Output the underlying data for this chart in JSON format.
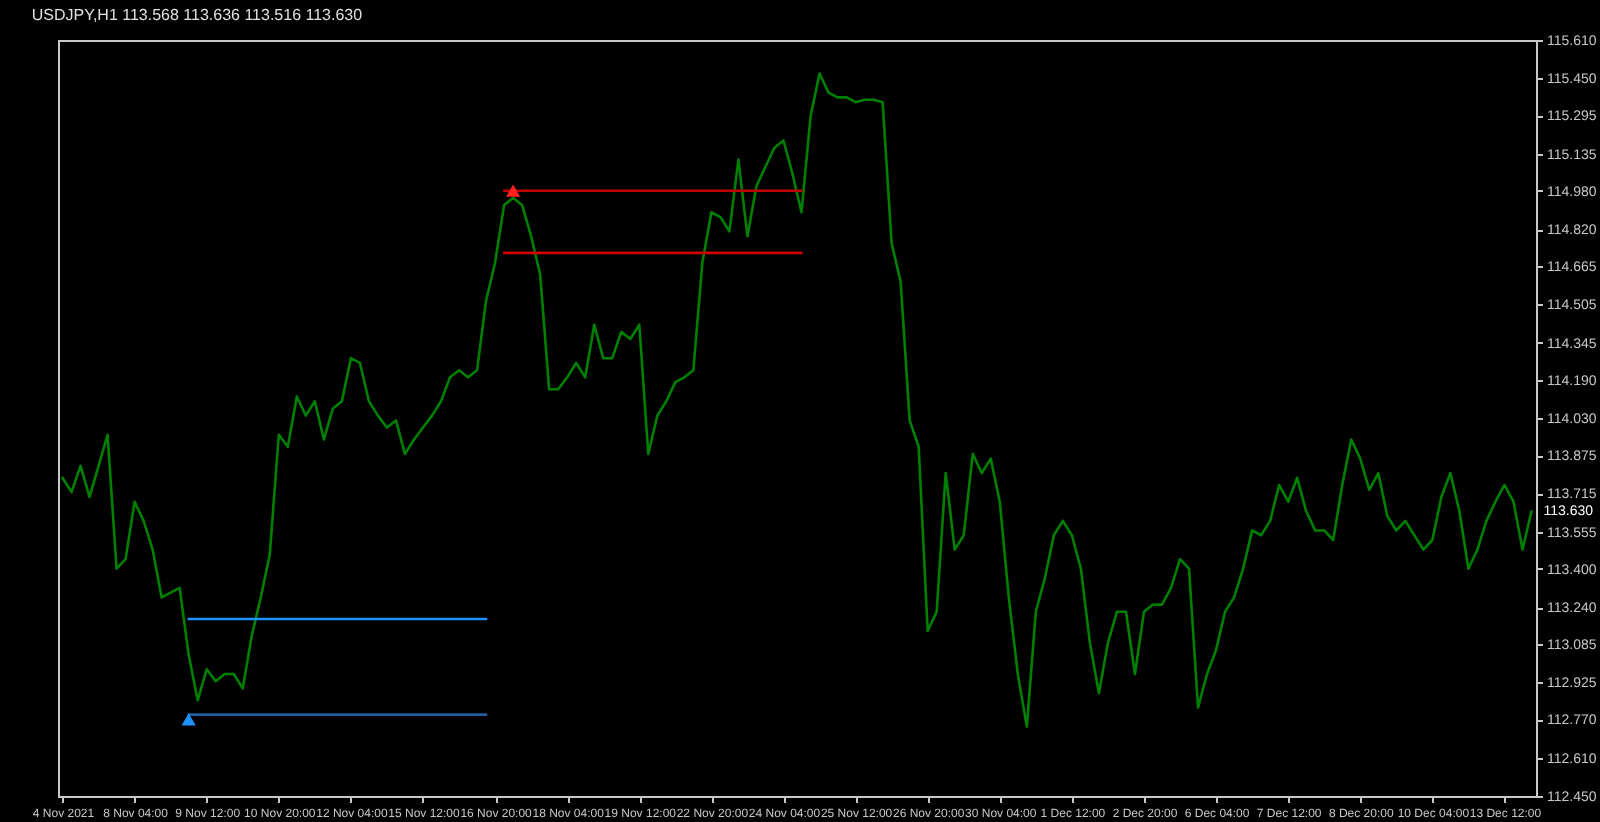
{
  "chart_data": {
    "type": "line",
    "title": "USDJPY,H1  113.568 113.636 113.516 113.630",
    "annotations": [
      "113.630"
    ],
    "categories": [
      "4 Nov 2021",
      null,
      null,
      null,
      null,
      null,
      null,
      null,
      "8 Nov 04:00",
      null,
      null,
      null,
      null,
      null,
      null,
      null,
      "9 Nov 12:00",
      null,
      null,
      null,
      null,
      null,
      null,
      null,
      "10 Nov 20:00",
      null,
      null,
      null,
      null,
      null,
      null,
      null,
      "12 Nov 04:00",
      null,
      null,
      null,
      null,
      null,
      null,
      null,
      "15 Nov 12:00",
      null,
      null,
      null,
      null,
      null,
      null,
      null,
      "16 Nov 20:00",
      null,
      null,
      null,
      null,
      null,
      null,
      null,
      "18 Nov 04:00",
      null,
      null,
      null,
      null,
      null,
      null,
      null,
      "19 Nov 12:00",
      null,
      null,
      null,
      null,
      null,
      null,
      null,
      "22 Nov 20:00",
      null,
      null,
      null,
      null,
      null,
      null,
      null,
      "24 Nov 04:00",
      null,
      null,
      null,
      null,
      null,
      null,
      null,
      "25 Nov 12:00",
      null,
      null,
      null,
      null,
      null,
      null,
      null,
      "26 Nov 20:00",
      null,
      null,
      null,
      null,
      null,
      null,
      null,
      "30 Nov 04:00",
      null,
      null,
      null,
      null,
      null,
      null,
      null,
      "1 Dec 12:00",
      null,
      null,
      null,
      null,
      null,
      null,
      null,
      "2 Dec 20:00",
      null,
      null,
      null,
      null,
      null,
      null,
      null,
      "6 Dec 04:00",
      null,
      null,
      null,
      null,
      null,
      null,
      null,
      "7 Dec 12:00",
      null,
      null,
      null,
      null,
      null,
      null,
      null,
      "8 Dec 20:00",
      null,
      null,
      null,
      null,
      null,
      null,
      null,
      "10 Dec 04:00",
      null,
      null,
      null,
      null,
      null,
      null,
      null,
      "13 Dec 12:00",
      null,
      null,
      null
    ],
    "ylim": [
      112.45,
      115.61
    ],
    "yticks": [
      {
        "value": 112.45,
        "label": "112.450"
      },
      {
        "value": 112.61,
        "label": "112.610"
      },
      {
        "value": 112.77,
        "label": "112.770"
      },
      {
        "value": 112.925,
        "label": "112.925"
      },
      {
        "value": 113.085,
        "label": "113.085"
      },
      {
        "value": 113.24,
        "label": "113.240"
      },
      {
        "value": 113.4,
        "label": "113.400"
      },
      {
        "value": 113.555,
        "label": "113.555"
      },
      {
        "value": 113.715,
        "label": "113.715"
      },
      {
        "value": 113.875,
        "label": "113.875"
      },
      {
        "value": 114.03,
        "label": "114.030"
      },
      {
        "value": 114.19,
        "label": "114.190"
      },
      {
        "value": 114.345,
        "label": "114.345"
      },
      {
        "value": 114.505,
        "label": "114.505"
      },
      {
        "value": 114.665,
        "label": "114.665"
      },
      {
        "value": 114.82,
        "label": "114.820"
      },
      {
        "value": 114.98,
        "label": "114.980"
      },
      {
        "value": 115.135,
        "label": "115.135"
      },
      {
        "value": 115.295,
        "label": "115.295"
      },
      {
        "value": 115.45,
        "label": "115.450"
      },
      {
        "value": 115.61,
        "label": "115.610"
      }
    ],
    "series": [
      {
        "color": "#008000",
        "values": [
          113.78,
          113.72,
          113.83,
          113.7,
          113.83,
          113.96,
          113.4,
          113.44,
          113.68,
          113.6,
          113.48,
          113.28,
          113.3,
          113.32,
          113.04,
          112.85,
          112.98,
          112.93,
          112.96,
          112.96,
          112.9,
          113.12,
          113.28,
          113.46,
          113.96,
          113.91,
          114.12,
          114.04,
          114.1,
          113.94,
          114.07,
          114.1,
          114.28,
          114.26,
          114.1,
          114.04,
          113.99,
          114.02,
          113.88,
          113.94,
          113.99,
          114.04,
          114.1,
          114.2,
          114.23,
          114.2,
          114.23,
          114.52,
          114.68,
          114.92,
          114.95,
          114.92,
          114.79,
          114.63,
          114.15,
          114.15,
          114.2,
          114.26,
          114.2,
          114.42,
          114.28,
          114.28,
          114.39,
          114.36,
          114.42,
          113.88,
          114.04,
          114.1,
          114.18,
          114.2,
          114.23,
          114.68,
          114.89,
          114.87,
          114.81,
          115.11,
          114.79,
          115.0,
          115.08,
          115.16,
          115.19,
          115.05,
          114.89,
          115.29,
          115.47,
          115.39,
          115.37,
          115.37,
          115.35,
          115.36,
          115.36,
          115.35,
          114.76,
          114.6,
          114.02,
          113.91,
          113.14,
          113.22,
          113.8,
          113.48,
          113.54,
          113.88,
          113.8,
          113.86,
          113.68,
          113.28,
          112.96,
          112.74,
          113.22,
          113.36,
          113.54,
          113.6,
          113.54,
          113.4,
          113.09,
          112.88,
          113.09,
          113.22,
          113.22,
          112.96,
          113.22,
          113.25,
          113.25,
          113.32,
          113.44,
          113.4,
          112.82,
          112.96,
          113.06,
          113.22,
          113.28,
          113.4,
          113.56,
          113.54,
          113.6,
          113.75,
          113.68,
          113.78,
          113.64,
          113.56,
          113.56,
          113.52,
          113.75,
          113.94,
          113.86,
          113.73,
          113.8,
          113.62,
          113.56,
          113.6,
          113.54,
          113.48,
          113.52,
          113.7,
          113.8,
          113.64,
          113.4,
          113.48,
          113.6,
          113.68,
          113.75,
          113.68,
          113.48,
          113.64
        ]
      },
      {
        "type": "line",
        "color": "#1e90ff",
        "values": [
          null,
          null,
          null,
          null,
          null,
          null,
          null,
          null,
          null,
          null,
          null,
          null,
          null,
          null,
          113.19,
          113.19,
          113.19,
          113.19,
          113.19,
          113.19,
          113.19,
          113.19,
          113.19,
          113.19,
          113.19,
          113.19,
          113.19,
          113.19,
          113.19,
          113.19,
          113.19,
          113.19,
          113.19,
          113.19,
          113.19,
          113.19,
          113.19,
          113.19,
          113.19,
          113.19,
          113.19,
          113.19,
          113.19,
          113.19,
          113.19,
          113.19,
          113.19,
          113.19,
          null,
          null,
          null,
          null,
          null,
          null,
          null,
          null,
          null,
          null,
          null,
          null,
          null,
          null,
          null,
          null,
          null,
          null,
          null,
          null,
          null,
          null,
          null,
          null,
          null,
          null,
          null,
          null,
          null,
          null,
          null,
          null,
          null,
          null,
          null,
          null,
          null,
          null,
          null,
          null,
          null,
          null,
          null,
          null,
          null,
          null,
          null,
          null,
          null,
          null,
          null,
          null,
          null,
          null,
          null,
          null,
          null,
          null,
          null,
          null,
          null,
          null,
          null,
          null,
          null,
          null,
          null,
          null,
          null,
          null,
          null,
          null,
          null,
          null,
          null,
          null,
          null,
          null,
          null,
          null,
          null,
          null,
          null,
          null,
          null,
          null,
          null,
          null,
          null,
          null,
          null,
          null,
          null,
          null,
          null,
          null,
          null,
          null,
          null,
          null,
          null,
          null,
          null,
          null,
          null,
          null,
          null,
          null,
          null,
          null,
          null,
          null,
          null,
          null,
          null,
          null
        ]
      },
      {
        "type": "line",
        "color": "#1f5f9f",
        "values": [
          null,
          null,
          null,
          null,
          null,
          null,
          null,
          null,
          null,
          null,
          null,
          null,
          null,
          null,
          112.79,
          112.79,
          112.79,
          112.79,
          112.79,
          112.79,
          112.79,
          112.79,
          112.79,
          112.79,
          112.79,
          112.79,
          112.79,
          112.79,
          112.79,
          112.79,
          112.79,
          112.79,
          112.79,
          112.79,
          112.79,
          112.79,
          112.79,
          112.79,
          112.79,
          112.79,
          112.79,
          112.79,
          112.79,
          112.79,
          112.79,
          112.79,
          112.79,
          112.79,
          null,
          null,
          null,
          null,
          null,
          null,
          null,
          null,
          null,
          null,
          null,
          null,
          null,
          null,
          null,
          null,
          null,
          null,
          null,
          null,
          null,
          null,
          null,
          null,
          null,
          null,
          null,
          null,
          null,
          null,
          null,
          null,
          null,
          null,
          null,
          null,
          null,
          null,
          null,
          null,
          null,
          null,
          null,
          null,
          null,
          null,
          null,
          null,
          null,
          null,
          null,
          null,
          null,
          null,
          null,
          null,
          null,
          null,
          null,
          null,
          null,
          null,
          null,
          null,
          null,
          null,
          null,
          null,
          null,
          null,
          null,
          null,
          null,
          null,
          null,
          null,
          null,
          null,
          null,
          null,
          null,
          null,
          null,
          null,
          null,
          null,
          null,
          null,
          null,
          null,
          null,
          null,
          null,
          null,
          null,
          null,
          null,
          null,
          null,
          null,
          null,
          null,
          null,
          null,
          null,
          null,
          null,
          null,
          null,
          null,
          null,
          null,
          null,
          null,
          null,
          null
        ]
      },
      {
        "type": "line",
        "color": "#c00000",
        "values": [
          null,
          null,
          null,
          null,
          null,
          null,
          null,
          null,
          null,
          null,
          null,
          null,
          null,
          null,
          null,
          null,
          null,
          null,
          null,
          null,
          null,
          null,
          null,
          null,
          null,
          null,
          null,
          null,
          null,
          null,
          null,
          null,
          null,
          null,
          null,
          null,
          null,
          null,
          null,
          null,
          null,
          null,
          null,
          null,
          null,
          null,
          null,
          null,
          null,
          114.98,
          114.98,
          114.98,
          114.98,
          114.98,
          114.98,
          114.98,
          114.98,
          114.98,
          114.98,
          114.98,
          114.98,
          114.98,
          114.98,
          114.98,
          114.98,
          114.98,
          114.98,
          114.98,
          114.98,
          114.98,
          114.98,
          114.98,
          114.98,
          114.98,
          114.98,
          114.98,
          114.98,
          114.98,
          114.98,
          114.98,
          114.98,
          114.98,
          114.98,
          null,
          null,
          null,
          null,
          null,
          null,
          null,
          null,
          null,
          null,
          null,
          null,
          null,
          null,
          null,
          null,
          null,
          null,
          null,
          null,
          null,
          null,
          null,
          null,
          null,
          null,
          null,
          null,
          null,
          null,
          null,
          null,
          null,
          null,
          null,
          null,
          null,
          null,
          null,
          null,
          null,
          null,
          null,
          null,
          null,
          null,
          null,
          null,
          null,
          null,
          null,
          null,
          null,
          null,
          null,
          null,
          null,
          null,
          null,
          null,
          null,
          null,
          null,
          null,
          null,
          null,
          null,
          null,
          null,
          null,
          null,
          null,
          null,
          null,
          null,
          null,
          null,
          null,
          null,
          null,
          null
        ]
      },
      {
        "type": "line",
        "color": "#d00000",
        "values": [
          null,
          null,
          null,
          null,
          null,
          null,
          null,
          null,
          null,
          null,
          null,
          null,
          null,
          null,
          null,
          null,
          null,
          null,
          null,
          null,
          null,
          null,
          null,
          null,
          null,
          null,
          null,
          null,
          null,
          null,
          null,
          null,
          null,
          null,
          null,
          null,
          null,
          null,
          null,
          null,
          null,
          null,
          null,
          null,
          null,
          null,
          null,
          null,
          null,
          114.72,
          114.72,
          114.72,
          114.72,
          114.72,
          114.72,
          114.72,
          114.72,
          114.72,
          114.72,
          114.72,
          114.72,
          114.72,
          114.72,
          114.72,
          114.72,
          114.72,
          114.72,
          114.72,
          114.72,
          114.72,
          114.72,
          114.72,
          114.72,
          114.72,
          114.72,
          114.72,
          114.72,
          114.72,
          114.72,
          114.72,
          114.72,
          114.72,
          114.72,
          null,
          null,
          null,
          null,
          null,
          null,
          null,
          null,
          null,
          null,
          null,
          null,
          null,
          null,
          null,
          null,
          null,
          null,
          null,
          null,
          null,
          null,
          null,
          null,
          null,
          null,
          null,
          null,
          null,
          null,
          null,
          null,
          null,
          null,
          null,
          null,
          null,
          null,
          null,
          null,
          null,
          null,
          null,
          null,
          null,
          null,
          null,
          null,
          null,
          null,
          null,
          null,
          null,
          null,
          null,
          null,
          null,
          null,
          null,
          null,
          null,
          null,
          null,
          null,
          null,
          null,
          null,
          null,
          null,
          null,
          null,
          null,
          null,
          null,
          null,
          null,
          null,
          null,
          null,
          null,
          null
        ]
      },
      {
        "type": "scatter",
        "color": "#ff2020",
        "marker": "triangle",
        "values": [
          null,
          null,
          null,
          null,
          null,
          null,
          null,
          null,
          null,
          null,
          null,
          null,
          null,
          null,
          null,
          null,
          null,
          null,
          null,
          null,
          null,
          null,
          null,
          null,
          null,
          null,
          null,
          null,
          null,
          null,
          null,
          null,
          null,
          null,
          null,
          null,
          null,
          null,
          null,
          null,
          null,
          null,
          null,
          null,
          null,
          null,
          null,
          null,
          null,
          null,
          114.98,
          null,
          null,
          null,
          null,
          null,
          null,
          null,
          null,
          null,
          null,
          null,
          null,
          null,
          null,
          null,
          null,
          null,
          null,
          null,
          null,
          null,
          null,
          null,
          null,
          null,
          null,
          null,
          null,
          null,
          null,
          null,
          null,
          null,
          null,
          null,
          null,
          null,
          null,
          null,
          null,
          null,
          null,
          null,
          null,
          null,
          null,
          null,
          null,
          null,
          null,
          null,
          null,
          null,
          null,
          null,
          null,
          null,
          null,
          null,
          null,
          null,
          null,
          null,
          null,
          null,
          null,
          null,
          null,
          null,
          null,
          null,
          null,
          null,
          null,
          null,
          null,
          null,
          null,
          null,
          null,
          null,
          null,
          null,
          null,
          null,
          null,
          null,
          null,
          null,
          null,
          null,
          null,
          null,
          null,
          null,
          null,
          null,
          null,
          null,
          null,
          null,
          null,
          null,
          null,
          null,
          null,
          null,
          null,
          null,
          null,
          null,
          null,
          null
        ]
      },
      {
        "type": "scatter",
        "color": "#1e90ff",
        "marker": "triangle",
        "values": [
          null,
          null,
          null,
          null,
          null,
          null,
          null,
          null,
          null,
          null,
          null,
          null,
          null,
          null,
          112.77,
          null,
          null,
          null,
          null,
          null,
          null,
          null,
          null,
          null,
          null,
          null,
          null,
          null,
          null,
          null,
          null,
          null,
          null,
          null,
          null,
          null,
          null,
          null,
          null,
          null,
          null,
          null,
          null,
          null,
          null,
          null,
          null,
          null,
          null,
          null,
          null,
          null,
          null,
          null,
          null,
          null,
          null,
          null,
          null,
          null,
          null,
          null,
          null,
          null,
          null,
          null,
          null,
          null,
          null,
          null,
          null,
          null,
          null,
          null,
          null,
          null,
          null,
          null,
          null,
          null,
          null,
          null,
          null,
          null,
          null,
          null,
          null,
          null,
          null,
          null,
          null,
          null,
          null,
          null,
          null,
          null,
          null,
          null,
          null,
          null,
          null,
          null,
          null,
          null,
          null,
          null,
          null,
          null,
          null,
          null,
          null,
          null,
          null,
          null,
          null,
          null,
          null,
          null,
          null,
          null,
          null,
          null,
          null,
          null,
          null,
          null,
          null,
          null,
          null,
          null,
          null,
          null,
          null,
          null,
          null,
          null,
          null,
          null,
          null,
          null,
          null,
          null,
          null,
          null,
          null,
          null,
          null,
          null,
          null,
          null,
          null,
          null,
          null,
          null,
          null,
          null,
          null,
          null,
          null,
          null,
          null,
          null,
          null,
          null
        ]
      }
    ]
  }
}
